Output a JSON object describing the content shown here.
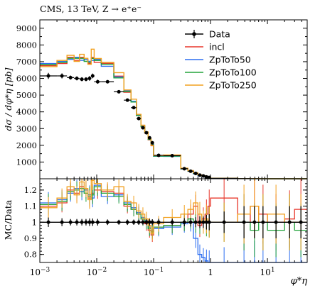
{
  "chart_data": {
    "type": "line",
    "title": "CMS, 13 TeV, Z → e⁺e⁻",
    "xlabel": "φ*η",
    "ylabel_top": "dσ / dφ*η [pb]",
    "ylabel_bottom": "MC/Data",
    "xscale": "log",
    "xlim": [
      0.001,
      50
    ],
    "ylim_top": [
      0,
      9500
    ],
    "ylim_bottom": [
      0.75,
      1.27
    ],
    "legend_position": "top-right",
    "x_tick_labels": [
      {
        "x": 0.001,
        "base": "10",
        "exp": "−3"
      },
      {
        "x": 0.01,
        "base": "10",
        "exp": "−2"
      },
      {
        "x": 0.1,
        "base": "10",
        "exp": "−1"
      },
      {
        "x": 1,
        "base": "1",
        "exp": ""
      },
      {
        "x": 10,
        "base": "10",
        "exp": "1"
      }
    ],
    "y_ticks_top": [
      "1000",
      "2000",
      "3000",
      "4000",
      "5000",
      "6000",
      "7000",
      "8000",
      "9000"
    ],
    "y_ticks_bottom": [
      "0.8",
      "0.9",
      "1",
      "1.1",
      "1.2"
    ],
    "bins": [
      0.001,
      0.002,
      0.003,
      0.004,
      0.005,
      0.006,
      0.007,
      0.008,
      0.009,
      0.012,
      0.02,
      0.03,
      0.04,
      0.05,
      0.06,
      0.07,
      0.08,
      0.09,
      0.1,
      0.15,
      0.3,
      0.4,
      0.5,
      0.6,
      0.7,
      0.8,
      0.9,
      1.0,
      3.0,
      5.0,
      7.0,
      10.0,
      20.0,
      30.0,
      50.0
    ],
    "data": {
      "name": "Data",
      "color": "#000000",
      "values": [
        6150,
        6150,
        6050,
        6000,
        5950,
        5950,
        6000,
        6150,
        5800,
        5800,
        5200,
        4700,
        4250,
        3600,
        3050,
        2750,
        2450,
        2150,
        1400,
        1380,
        600,
        450,
        320,
        220,
        170,
        110,
        80,
        30,
        10,
        6,
        4,
        2,
        1,
        0.5
      ],
      "errors": [
        180,
        150,
        120,
        120,
        120,
        120,
        140,
        140,
        120,
        100,
        80,
        80,
        70,
        60,
        50,
        50,
        50,
        40,
        30,
        30,
        15,
        12,
        10,
        8,
        6,
        5,
        4,
        2,
        1,
        0.6,
        0.4,
        0.2,
        0.1,
        0.05
      ]
    },
    "series": [
      {
        "name": "incl",
        "color": "#e8372b",
        "ratio": [
          1.1,
          1.12,
          1.2,
          1.18,
          1.22,
          1.2,
          1.15,
          1.18,
          1.2,
          1.19,
          1.18,
          1.1,
          1.08,
          1.05,
          1.02,
          0.99,
          0.95,
          0.92,
          0.97,
          0.98,
          1.0,
          1.05,
          1.1,
          0.98,
          1.02,
          1.05,
          1.1,
          1.15,
          1.0,
          1.1,
          1.05,
          1.0,
          1.02,
          1.08
        ]
      },
      {
        "name": "ZpToTo50",
        "color": "#2d6ef0",
        "ratio": [
          1.12,
          1.14,
          1.18,
          1.21,
          1.19,
          1.2,
          1.17,
          1.15,
          1.23,
          1.16,
          1.17,
          1.12,
          1.09,
          1.06,
          1.03,
          1.01,
          0.97,
          0.95,
          0.96,
          0.97,
          0.99,
          1.0,
          0.9,
          0.8,
          0.78,
          0.76,
          0.75,
          0.75,
          0.75,
          0.75,
          0.75,
          0.75,
          0.75,
          0.75
        ]
      },
      {
        "name": "ZpToTo100",
        "color": "#22a33a",
        "ratio": [
          1.11,
          1.13,
          1.19,
          1.2,
          1.21,
          1.18,
          1.16,
          1.17,
          1.22,
          1.18,
          1.16,
          1.11,
          1.08,
          1.05,
          1.02,
          1.0,
          0.96,
          0.94,
          0.97,
          0.98,
          1.0,
          1.02,
          1.0,
          1.0,
          1.0,
          1.0,
          1.0,
          1.0,
          1.0,
          0.95,
          1.0,
          0.95,
          1.0,
          0.95
        ]
      },
      {
        "name": "ZpToTo250",
        "color": "#f2a01e",
        "ratio": [
          1.09,
          1.15,
          1.22,
          1.17,
          1.25,
          1.21,
          1.14,
          1.26,
          1.24,
          1.2,
          1.22,
          1.13,
          1.12,
          1.07,
          1.05,
          1.02,
          0.98,
          0.93,
          0.99,
          1.03,
          1.05,
          1.08,
          1.12,
          1.05,
          1.0,
          1.02,
          1.0,
          1.0,
          1.05,
          1.1,
          1.0,
          1.05,
          1.0,
          1.0
        ]
      }
    ]
  }
}
